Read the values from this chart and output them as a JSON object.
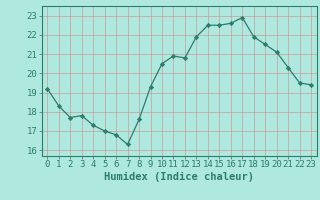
{
  "x": [
    0,
    1,
    2,
    3,
    4,
    5,
    6,
    7,
    8,
    9,
    10,
    11,
    12,
    13,
    14,
    15,
    16,
    17,
    18,
    19,
    20,
    21,
    22,
    23
  ],
  "y": [
    19.2,
    18.3,
    17.7,
    17.8,
    17.3,
    17.0,
    16.8,
    16.3,
    17.6,
    19.3,
    20.5,
    20.9,
    20.8,
    21.9,
    22.5,
    22.5,
    22.6,
    22.9,
    21.9,
    21.5,
    21.1,
    20.3,
    19.5,
    19.4
  ],
  "line_color": "#2d7d6d",
  "marker": "D",
  "marker_size": 2.2,
  "bg_color": "#aee8de",
  "grid_color": "#e8e8e8",
  "xlabel": "Humidex (Indice chaleur)",
  "ylim": [
    15.7,
    23.5
  ],
  "xlim": [
    -0.5,
    23.5
  ],
  "yticks": [
    16,
    17,
    18,
    19,
    20,
    21,
    22,
    23
  ],
  "xticks": [
    0,
    1,
    2,
    3,
    4,
    5,
    6,
    7,
    8,
    9,
    10,
    11,
    12,
    13,
    14,
    15,
    16,
    17,
    18,
    19,
    20,
    21,
    22,
    23
  ],
  "label_fontsize": 7.5,
  "tick_fontsize": 6.5
}
